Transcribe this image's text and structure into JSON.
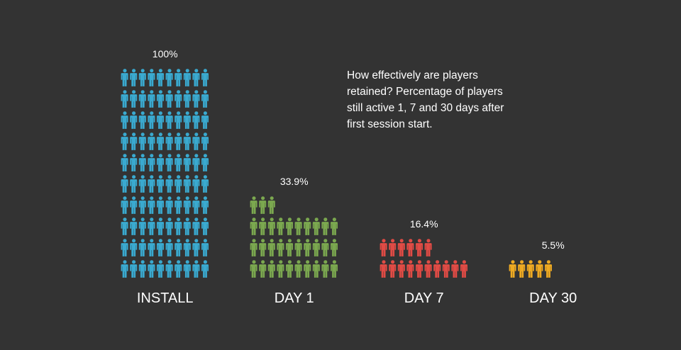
{
  "chart_data": {
    "type": "bar",
    "style": "isotype-people",
    "categories": [
      "INSTALL",
      "DAY 1",
      "DAY 7",
      "DAY 30"
    ],
    "values": [
      100,
      33.9,
      16.4,
      5.5
    ],
    "value_labels": [
      "100%",
      "33.9%",
      "16.4%",
      "5.5%"
    ],
    "unit": "%",
    "icons_per_row": 10,
    "icon_unit": "person-icon",
    "annotation": "How effectively are players\nretained? Percentage of players\nstill active 1, 7 and 30 days after\nfirst session start.",
    "colors": [
      "#3AAAD0",
      "#7BA84F",
      "#E14B45",
      "#EEAA22"
    ],
    "background": "#333333"
  }
}
